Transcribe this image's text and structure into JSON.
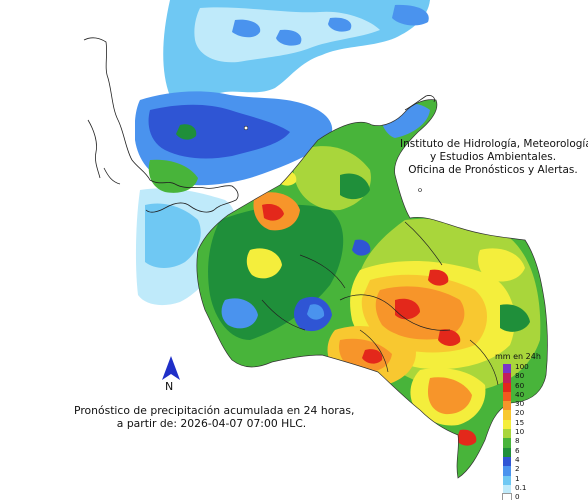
{
  "header": {
    "line1": "Instituto de Hidrología, Meteorología",
    "line2": "y Estudios Ambientales.",
    "line3": "Oficina de Pronósticos y Alertas."
  },
  "caption": {
    "line1": "Pronóstico de precipitación acumulada en 24 horas,",
    "line2": "a partir de: 2026-04-07 07:00 HLC."
  },
  "north_arrow": {
    "label": "N",
    "icon": "north-arrow-icon"
  },
  "legend": {
    "title": "mm en 24h",
    "items": [
      {
        "label": "100",
        "color": "#7a33c9"
      },
      {
        "label": "80",
        "color": "#c21f5b"
      },
      {
        "label": "60",
        "color": "#e3281b"
      },
      {
        "label": "40",
        "color": "#f25a1e"
      },
      {
        "label": "30",
        "color": "#f7952a"
      },
      {
        "label": "20",
        "color": "#f8c830"
      },
      {
        "label": "15",
        "color": "#f4ee3c"
      },
      {
        "label": "10",
        "color": "#a9d63b"
      },
      {
        "label": "8",
        "color": "#48b43a"
      },
      {
        "label": "6",
        "color": "#1f8f3a"
      },
      {
        "label": "4",
        "color": "#2f55d4"
      },
      {
        "label": "2",
        "color": "#4a93ee"
      },
      {
        "label": "1",
        "color": "#6fc8f3"
      },
      {
        "label": "0.1",
        "color": "#bfeafa"
      },
      {
        "label": "0",
        "color": "#ffffff"
      }
    ]
  },
  "colors": {
    "ocean_light": "#bfeafa",
    "ocean_mid": "#6fc8f3",
    "blue": "#4a93ee",
    "dark_blue": "#2f55d4",
    "green": "#1f8f3a",
    "light_green": "#48b43a",
    "yellow_green": "#a9d63b",
    "yellow": "#f4ee3c",
    "orange": "#f7952a",
    "red": "#e3281b"
  }
}
